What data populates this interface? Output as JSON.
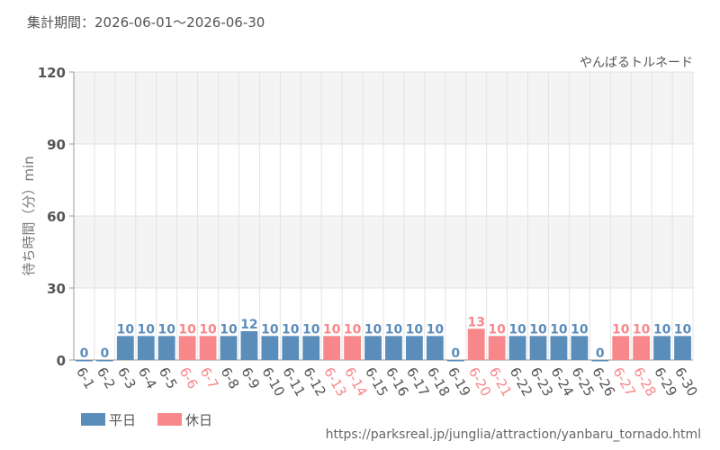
{
  "header": {
    "period_label": "集計期間：2026-06-01～2026-06-30"
  },
  "footer": {
    "source_url": "https://parksreal.jp/junglia/attraction/yanbaru_tornado.html"
  },
  "colors": {
    "weekday": "#5b8dbb",
    "holiday": "#f7878a",
    "band": "#f4f4f4",
    "grid": "#e3e3e3",
    "axis": "#999999",
    "text": "#555555"
  },
  "chart_data": {
    "type": "bar",
    "title": "やんばるトルネード",
    "ylabel": "待ち時間（分）min",
    "ylim": [
      0,
      120
    ],
    "yticks": [
      0,
      30,
      60,
      90,
      120
    ],
    "grid": true,
    "legend": {
      "position": "bottom-left",
      "entries": [
        {
          "label": "平日",
          "type": "weekday"
        },
        {
          "label": "休日",
          "type": "holiday"
        }
      ]
    },
    "categories": [
      "6-1",
      "6-2",
      "6-3",
      "6-4",
      "6-5",
      "6-6",
      "6-7",
      "6-8",
      "6-9",
      "6-10",
      "6-11",
      "6-12",
      "6-13",
      "6-14",
      "6-15",
      "6-16",
      "6-17",
      "6-18",
      "6-19",
      "6-20",
      "6-21",
      "6-22",
      "6-23",
      "6-24",
      "6-25",
      "6-26",
      "6-27",
      "6-28",
      "6-29",
      "6-30"
    ],
    "values": [
      0,
      0,
      10,
      10,
      10,
      10,
      10,
      10,
      12,
      10,
      10,
      10,
      10,
      10,
      10,
      10,
      10,
      10,
      0,
      13,
      10,
      10,
      10,
      10,
      10,
      0,
      10,
      10,
      10,
      10
    ],
    "day_type": [
      "weekday",
      "weekday",
      "weekday",
      "weekday",
      "weekday",
      "holiday",
      "holiday",
      "weekday",
      "weekday",
      "weekday",
      "weekday",
      "weekday",
      "holiday",
      "holiday",
      "weekday",
      "weekday",
      "weekday",
      "weekday",
      "weekday",
      "holiday",
      "holiday",
      "weekday",
      "weekday",
      "weekday",
      "weekday",
      "weekday",
      "holiday",
      "holiday",
      "weekday",
      "weekday"
    ]
  }
}
